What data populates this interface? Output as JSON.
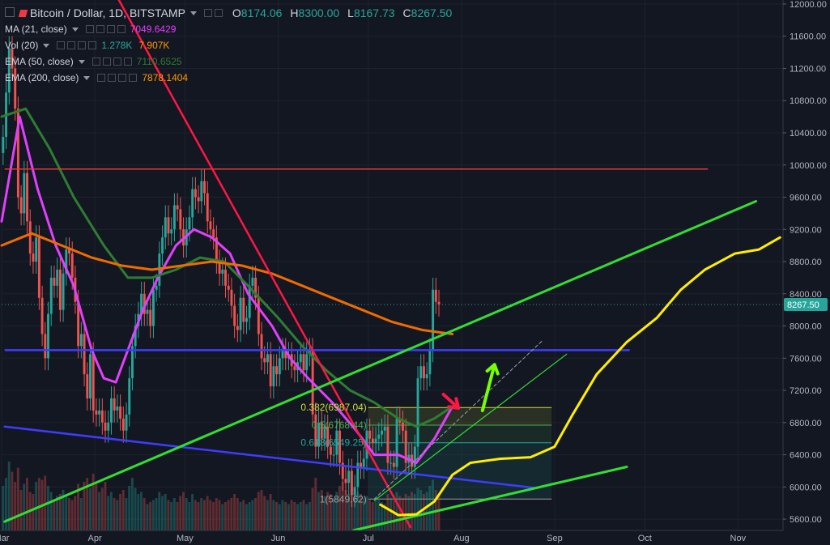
{
  "header": {
    "symbol": "Bitcoin / Dollar, 1D, BITSTAMP",
    "ohlc": [
      {
        "k": "O",
        "v": "8174.06"
      },
      {
        "k": "H",
        "v": "8300.00"
      },
      {
        "k": "L",
        "v": "8167.73"
      },
      {
        "k": "C",
        "v": "8267.50"
      }
    ]
  },
  "indicators": [
    {
      "name": "MA (21, close)",
      "values": [
        "7049.6429"
      ],
      "color": "#e040fb"
    },
    {
      "name": "Vol (20)",
      "values": [
        "1.278K",
        "7.907K"
      ],
      "colors": [
        "#26a69a",
        "#ff9800"
      ]
    },
    {
      "name": "EMA (50, close)",
      "values": [
        "7110.6525"
      ],
      "color": "#2e7d32"
    },
    {
      "name": "EMA (200, close)",
      "values": [
        "7878.1404"
      ],
      "color": "#ff9800"
    }
  ],
  "price_label": "8267.50",
  "fib_labels": [
    "0.382(6987.04)",
    "0.5(6768.44)",
    "0.618(6549.25)",
    "1(5849.62)"
  ],
  "chart_data": {
    "type": "candlestick",
    "ylim": [
      5460,
      12050
    ],
    "yticks": [
      5600,
      6000,
      6400,
      6800,
      7200,
      7600,
      8000,
      8400,
      8800,
      9200,
      9600,
      10000,
      10400,
      10800,
      11200,
      11600,
      12000
    ],
    "ytick_labels": [
      "5600.00",
      "6000.00",
      "6400.00",
      "6800.00",
      "7200.00",
      "7600.00",
      "8000.00",
      "8400.00",
      "8800.00",
      "9200.00",
      "9600.00",
      "10000.00",
      "10400.00",
      "10800.00",
      "11200.00",
      "11600.00",
      "12000.00"
    ],
    "xrange": [
      0,
      260
    ],
    "xticks": [
      {
        "label": "Mar",
        "d": 0
      },
      {
        "label": "Apr",
        "d": 31
      },
      {
        "label": "May",
        "d": 61
      },
      {
        "label": "Jun",
        "d": 92
      },
      {
        "label": "Jul",
        "d": 122
      },
      {
        "label": "Aug",
        "d": 153
      },
      {
        "label": "Sep",
        "d": 184
      },
      {
        "label": "Oct",
        "d": 214
      },
      {
        "label": "Nov",
        "d": 245
      }
    ],
    "last_price": 8267.5,
    "closes": [
      10350,
      10900,
      11450,
      11200,
      10700,
      9600,
      9400,
      9900,
      9300,
      8900,
      8800,
      9100,
      8350,
      7900,
      7600,
      8150,
      8600,
      8500,
      8700,
      8200,
      8650,
      8950,
      8900,
      8600,
      8300,
      7750,
      7900,
      7400,
      7100,
      7650,
      6950,
      6900,
      6950,
      6800,
      6700,
      6800,
      7100,
      6950,
      7000,
      6850,
      6700,
      6900,
      7350,
      7750,
      8000,
      8150,
      8400,
      8150,
      8200,
      8000,
      8450,
      8500,
      8900,
      9100,
      9350,
      9150,
      9200,
      9500,
      9450,
      9200,
      9000,
      9200,
      9350,
      9700,
      9600,
      9550,
      9800,
      9650,
      9300,
      9200,
      9100,
      8800,
      8650,
      8700,
      8500,
      8450,
      8250,
      8000,
      7950,
      8350,
      8050,
      8100,
      8500,
      8600,
      8350,
      7900,
      7600,
      7550,
      7650,
      7250,
      7500,
      7400,
      7600,
      7700,
      7600,
      7650,
      7500,
      7450,
      7550,
      7650,
      7450,
      7650,
      7700,
      6900,
      6500,
      6800,
      6600,
      6750,
      6500,
      6400,
      6400,
      6700,
      6300,
      6100,
      6050,
      6200,
      5900,
      6000,
      6300,
      6250,
      6350,
      6700,
      6600,
      6550,
      6600,
      6650,
      6700,
      6750,
      6300,
      6300,
      6250,
      6850,
      6800,
      6700,
      6300,
      6400,
      6250,
      6500,
      7350,
      7500,
      7350,
      7400,
      7700,
      8450,
      8300,
      8267.5
    ],
    "volumes": [
      2.2,
      2.6,
      3.4,
      2.9,
      2.4,
      3.1,
      2.0,
      2.3,
      2.6,
      1.9,
      1.8,
      2.4,
      2.6,
      2.5,
      2.7,
      2.2,
      1.9,
      1.5,
      1.7,
      1.8,
      2.0,
      1.7,
      1.6,
      1.5,
      1.7,
      2.3,
      1.6,
      2.4,
      2.6,
      2.1,
      2.8,
      2.3,
      1.9,
      2.1,
      2.4,
      1.7,
      1.9,
      1.6,
      1.5,
      1.8,
      2.0,
      1.6,
      2.2,
      2.6,
      2.1,
      1.8,
      1.9,
      1.6,
      1.3,
      1.4,
      1.5,
      1.6,
      1.9,
      1.7,
      1.8,
      1.5,
      1.4,
      1.6,
      1.4,
      1.7,
      1.9,
      1.6,
      1.4,
      1.8,
      1.5,
      1.4,
      1.6,
      1.5,
      1.7,
      1.5,
      1.4,
      1.6,
      1.5,
      1.3,
      1.4,
      1.5,
      1.6,
      1.8,
      1.6,
      1.4,
      1.5,
      1.3,
      1.4,
      1.5,
      1.6,
      1.9,
      2.0,
      1.7,
      1.5,
      1.8,
      1.5,
      1.4,
      1.3,
      1.5,
      1.4,
      1.3,
      1.5,
      1.4,
      1.3,
      1.4,
      1.5,
      1.3,
      1.4,
      2.1,
      2.6,
      1.9,
      2.0,
      1.7,
      1.9,
      1.8,
      1.6,
      1.9,
      2.2,
      2.4,
      2.0,
      1.8,
      2.3,
      2.1,
      1.9,
      1.8,
      1.6,
      1.7,
      1.5,
      1.4,
      1.6,
      1.5,
      1.4,
      1.3,
      1.8,
      1.6,
      1.5,
      1.9,
      1.7,
      1.6,
      1.8,
      1.7,
      1.9,
      1.8,
      2.1,
      2.0,
      1.8,
      1.9,
      2.2,
      2.5,
      2.0,
      1.7
    ],
    "series": [
      {
        "name": "MA (21, close)",
        "color": "#e040fb",
        "points": [
          [
            0,
            9300
          ],
          [
            6,
            10600
          ],
          [
            12,
            9700
          ],
          [
            18,
            9000
          ],
          [
            24,
            8500
          ],
          [
            30,
            7700
          ],
          [
            34,
            7350
          ],
          [
            38,
            7300
          ],
          [
            42,
            7700
          ],
          [
            47,
            8200
          ],
          [
            52,
            8600
          ],
          [
            58,
            9000
          ],
          [
            64,
            9200
          ],
          [
            70,
            9100
          ],
          [
            76,
            8900
          ],
          [
            82,
            8400
          ],
          [
            90,
            8000
          ],
          [
            96,
            7600
          ],
          [
            102,
            7350
          ],
          [
            110,
            7050
          ],
          [
            118,
            6700
          ],
          [
            124,
            6400
          ],
          [
            132,
            6400
          ],
          [
            138,
            6300
          ],
          [
            144,
            6600
          ],
          [
            150,
            7000
          ]
        ]
      },
      {
        "name": "EMA (50, close)",
        "color": "#2e7d32",
        "points": [
          [
            0,
            10600
          ],
          [
            8,
            10700
          ],
          [
            16,
            10200
          ],
          [
            24,
            9600
          ],
          [
            34,
            9000
          ],
          [
            42,
            8600
          ],
          [
            50,
            8600
          ],
          [
            58,
            8700
          ],
          [
            66,
            8850
          ],
          [
            74,
            8800
          ],
          [
            82,
            8500
          ],
          [
            92,
            8100
          ],
          [
            100,
            7750
          ],
          [
            108,
            7450
          ],
          [
            116,
            7200
          ],
          [
            124,
            7050
          ],
          [
            132,
            6850
          ],
          [
            138,
            6750
          ],
          [
            144,
            6850
          ],
          [
            150,
            7000
          ]
        ]
      },
      {
        "name": "EMA (200, close)",
        "color": "#ef6c00",
        "points": [
          [
            0,
            9000
          ],
          [
            10,
            9150
          ],
          [
            20,
            9000
          ],
          [
            30,
            8850
          ],
          [
            40,
            8750
          ],
          [
            50,
            8700
          ],
          [
            60,
            8750
          ],
          [
            70,
            8800
          ],
          [
            80,
            8750
          ],
          [
            90,
            8650
          ],
          [
            100,
            8500
          ],
          [
            110,
            8350
          ],
          [
            120,
            8200
          ],
          [
            130,
            8050
          ],
          [
            140,
            7950
          ],
          [
            150,
            7900
          ]
        ]
      }
    ],
    "drawings": {
      "red_trendline": [
        [
          39,
          12050
        ],
        [
          136,
          5500
        ]
      ],
      "red_horizontal": {
        "y": 9950,
        "from": 1,
        "to": 235
      },
      "blue_horizontal": {
        "y": 7700,
        "from": 1,
        "to": 209
      },
      "blue_descending": [
        [
          1,
          6750
        ],
        [
          177,
          5990
        ]
      ],
      "green_long": [
        [
          1,
          5570
        ],
        [
          251,
          9550
        ]
      ],
      "green_lower": [
        [
          117,
          5460
        ],
        [
          208,
          6250
        ]
      ],
      "green_channel": [
        [
          124,
          5830
        ],
        [
          188,
          7650
        ]
      ],
      "dashed_channel": [
        [
          124,
          5850
        ],
        [
          180,
          7820
        ]
      ],
      "yellow_projection": [
        [
          126,
          5780
        ],
        [
          132,
          5650
        ],
        [
          138,
          5660
        ],
        [
          144,
          5820
        ],
        [
          150,
          6150
        ],
        [
          156,
          6300
        ],
        [
          166,
          6350
        ],
        [
          176,
          6370
        ],
        [
          184,
          6500
        ],
        [
          190,
          6900
        ],
        [
          198,
          7400
        ],
        [
          208,
          7800
        ],
        [
          218,
          8100
        ],
        [
          226,
          8450
        ],
        [
          234,
          8700
        ],
        [
          244,
          8900
        ],
        [
          252,
          8950
        ],
        [
          259,
          9100
        ]
      ],
      "fib_box": {
        "x0": 122,
        "x1": 183,
        "levels": [
          6987.04,
          6768.44,
          6549.25,
          5849.62
        ],
        "colors": [
          "#cddc39",
          "#4caf50",
          "#26a69a",
          "#9e9e9e"
        ]
      },
      "arrows": [
        {
          "from": [
            147,
            7150
          ],
          "to": [
            152,
            6980
          ],
          "color": "#ff1744"
        },
        {
          "from": [
            160,
            6950
          ],
          "to": [
            164,
            7520
          ],
          "color": "#76ff03"
        }
      ]
    }
  }
}
